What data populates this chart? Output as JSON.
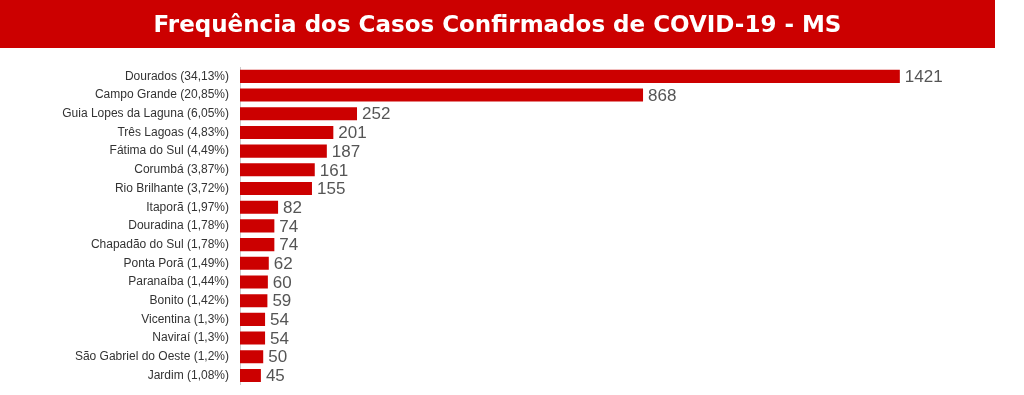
{
  "chart_data": {
    "type": "bar",
    "title": "Frequência dos Casos Confirmados de COVID-19 - MS",
    "orientation": "horizontal",
    "categories": [
      "Dourados (34,13%)",
      "Campo Grande (20,85%)",
      "Guia Lopes da Laguna (6,05%)",
      "Três Lagoas (4,83%)",
      "Fátima do Sul (4,49%)",
      "Corumbá (3,87%)",
      "Rio Brilhante (3,72%)",
      "Itaporã (1,97%)",
      "Douradina (1,78%)",
      "Chapadão do Sul (1,78%)",
      "Ponta Porã (1,49%)",
      "Paranaíba (1,44%)",
      "Bonito (1,42%)",
      "Vicentina (1,3%)",
      "Naviraí (1,3%)",
      "São Gabriel do Oeste (1,2%)",
      "Jardim (1,08%)"
    ],
    "values": [
      1421,
      868,
      252,
      201,
      187,
      161,
      155,
      82,
      74,
      74,
      62,
      60,
      59,
      54,
      54,
      50,
      45
    ],
    "color": "#cc0000",
    "data_labels": true,
    "legend": false
  }
}
